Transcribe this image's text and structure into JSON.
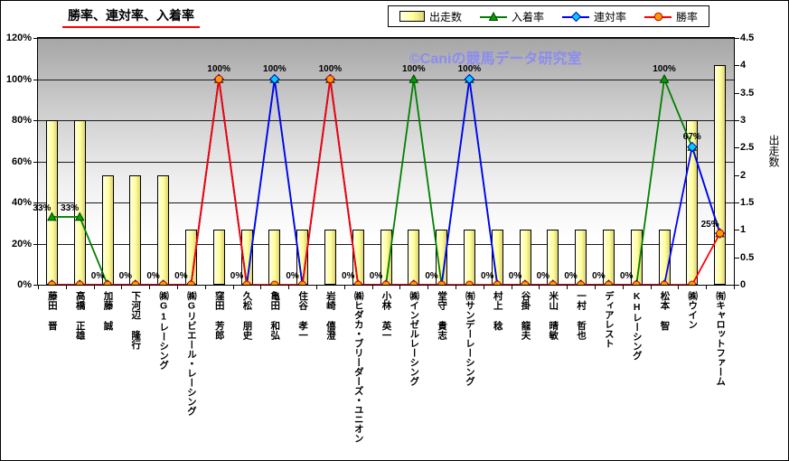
{
  "title": "勝率、連対率、入着率",
  "watermark": "©Caniの競馬データ研究室",
  "legend": [
    {
      "label": "出走数"
    },
    {
      "label": "入着率"
    },
    {
      "label": "連対率"
    },
    {
      "label": "勝率"
    }
  ],
  "colors": {
    "bar_fill": "#FFFF99",
    "bar_border": "#000000",
    "place_line": "#008000",
    "quinella_line": "#0000FF",
    "win_line": "#FF0000",
    "watermark": "#8C8CF0",
    "title_underline": "#FF0000"
  },
  "chart_data": {
    "type": "bar",
    "subtype": "combo-bar-and-lines",
    "title": "勝率、連対率、入着率",
    "legend_position": "top",
    "grid": true,
    "categories": [
      "藤田 晋",
      "高橋 正雄",
      "加藤 誠",
      "下河辺 隆行",
      "㈱G1レーシング",
      "㈱Gリビエール・レーシング",
      "窪田 芳郎",
      "久松 朋史",
      "亀田 和弘",
      "住谷 孝一",
      "岩崎 僖澄",
      "㈱ヒダカ・ブリーダーズ・ユニオン",
      "小林 英一",
      "㈱インゼルレーシング",
      "堂守 貴志",
      "㈲サンデーレーシング",
      "村上 稔",
      "谷掛 龍夫",
      "米山 晴敏",
      "一村 哲也",
      "ディアレスト",
      "KHレーシング",
      "松本 智",
      "㈱ウイン",
      "㈲キャロットファーム"
    ],
    "bar_series": {
      "name": "出走数",
      "axis": "right",
      "values": [
        3,
        3,
        2,
        2,
        2,
        1,
        1,
        1,
        1,
        1,
        1,
        1,
        1,
        1,
        1,
        1,
        1,
        1,
        1,
        1,
        1,
        1,
        1,
        3,
        4
      ]
    },
    "line_series": [
      {
        "name": "入着率",
        "marker": "triangle",
        "line_color": "#008000",
        "marker_fill": "#00A000",
        "marker_stroke": "#004000",
        "values": [
          33,
          33,
          0,
          0,
          0,
          0,
          100,
          0,
          100,
          0,
          100,
          0,
          0,
          100,
          0,
          100,
          0,
          0,
          0,
          0,
          0,
          0,
          100,
          67,
          25
        ]
      },
      {
        "name": "連対率",
        "marker": "diamond",
        "line_color": "#0000FF",
        "marker_fill": "#00CCFF",
        "marker_stroke": "#0000C0",
        "values": [
          0,
          0,
          0,
          0,
          0,
          0,
          100,
          0,
          100,
          0,
          100,
          0,
          0,
          0,
          0,
          100,
          0,
          0,
          0,
          0,
          0,
          0,
          0,
          67,
          25
        ]
      },
      {
        "name": "勝率",
        "marker": "circle",
        "line_color": "#FF0000",
        "marker_fill": "#FF9900",
        "marker_stroke": "#C00000",
        "values": [
          0,
          0,
          0,
          0,
          0,
          0,
          100,
          0,
          0,
          0,
          100,
          0,
          0,
          0,
          0,
          0,
          0,
          0,
          0,
          0,
          0,
          0,
          0,
          0,
          25
        ]
      }
    ],
    "point_labels": [
      "33%",
      "33%",
      "0%",
      "0%",
      "0%",
      "0%",
      "100%",
      "0%",
      "100%",
      "0%",
      "100%",
      "0%",
      "0%",
      "100%",
      "0%",
      "100%",
      "0%",
      "0%",
      "0%",
      "0%",
      "0%",
      "0%",
      "100%",
      "67%",
      "25%"
    ],
    "left_axis": {
      "ticks": [
        "0%",
        "20%",
        "40%",
        "60%",
        "80%",
        "100%",
        "120%"
      ],
      "tick_values": [
        0,
        20,
        40,
        60,
        80,
        100,
        120
      ],
      "min": 0,
      "max": 120
    },
    "right_axis": {
      "label": "出走数",
      "ticks": [
        "0",
        "0.5",
        "1",
        "1.5",
        "2",
        "2.5",
        "3",
        "3.5",
        "4",
        "4.5"
      ],
      "tick_values": [
        0,
        0.5,
        1,
        1.5,
        2,
        2.5,
        3,
        3.5,
        4,
        4.5
      ],
      "min": 0,
      "max": 4.5
    }
  }
}
